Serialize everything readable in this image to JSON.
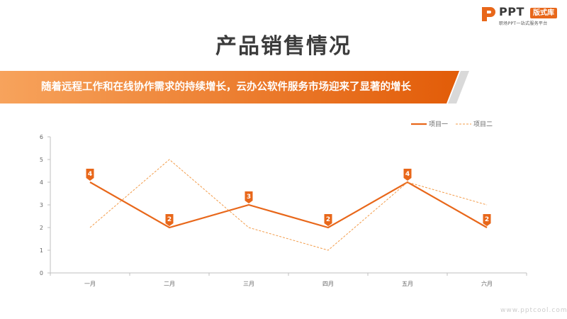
{
  "logo": {
    "icon": "ppt-logo-icon",
    "brand": "PPT",
    "badge": "版式库",
    "tagline": "职场PPT一站式服务平台"
  },
  "title": "产品销售情况",
  "banner": {
    "text": "随着远程工作和在线协作需求的持续增长，云办公软件服务市场迎来了显著的增长"
  },
  "watermark": "www.pptcool.com",
  "colors": {
    "accent": "#e8671a",
    "accent_light": "#f39c4a",
    "banner_start": "#f7a35c",
    "banner_end": "#e25c08",
    "stripe": "#d9d9d9"
  },
  "chart_data": {
    "type": "line",
    "categories": [
      "一月",
      "二月",
      "三月",
      "四月",
      "五月",
      "六月"
    ],
    "ylim": [
      0,
      6
    ],
    "yticks": [
      "0",
      "1",
      "2",
      "3",
      "4",
      "5",
      "6"
    ],
    "grid": false,
    "legend": "top-right",
    "series": [
      {
        "name": "项目一",
        "values": [
          4,
          2,
          3,
          2,
          4,
          2
        ],
        "style": "solid",
        "data_labels": true
      },
      {
        "name": "项目二",
        "values": [
          2,
          5,
          2,
          1,
          4,
          3
        ],
        "style": "dashed",
        "data_labels": false
      }
    ]
  }
}
